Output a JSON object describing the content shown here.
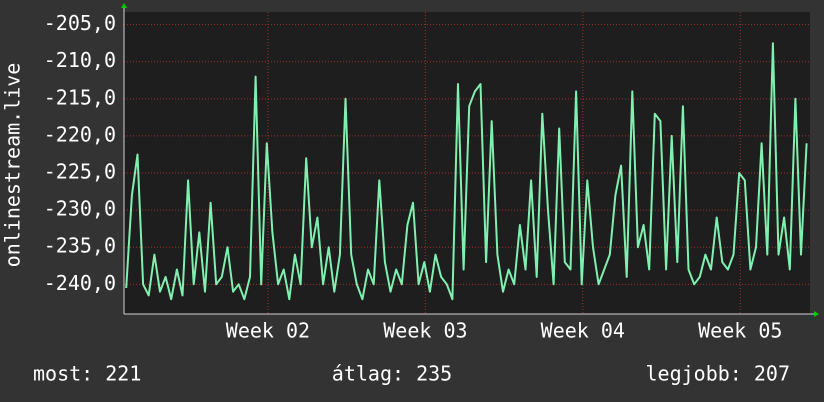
{
  "chart_data": {
    "type": "line",
    "ylabel": "onlinestream.live",
    "color": "#80f0b0",
    "grid": true,
    "ylim": [
      -244,
      -203.3
    ],
    "yticks": [
      {
        "value": -240,
        "label": "-240,0"
      },
      {
        "value": -235,
        "label": "-235,0"
      },
      {
        "value": -230,
        "label": "-230,0"
      },
      {
        "value": -225,
        "label": "-225,0"
      },
      {
        "value": -220,
        "label": "-220,0"
      },
      {
        "value": -215,
        "label": "-215,0"
      },
      {
        "value": -210,
        "label": "-210,0"
      },
      {
        "value": -205,
        "label": "-205,0"
      }
    ],
    "xlim": [
      0,
      30.5
    ],
    "xticks": [
      {
        "value": 6.4,
        "label": "Week 02"
      },
      {
        "value": 13.4,
        "label": "Week 03"
      },
      {
        "value": 20.4,
        "label": "Week 04"
      },
      {
        "value": 27.4,
        "label": "Week 05"
      }
    ],
    "x": [
      0.1,
      0.35,
      0.6,
      0.85,
      1.1,
      1.35,
      1.6,
      1.85,
      2.1,
      2.35,
      2.6,
      2.85,
      3.1,
      3.35,
      3.6,
      3.85,
      4.1,
      4.35,
      4.6,
      4.85,
      5.1,
      5.35,
      5.6,
      5.85,
      6.1,
      6.35,
      6.6,
      6.85,
      7.1,
      7.35,
      7.6,
      7.85,
      8.1,
      8.35,
      8.6,
      8.85,
      9.1,
      9.35,
      9.6,
      9.85,
      10.1,
      10.35,
      10.6,
      10.85,
      11.1,
      11.35,
      11.6,
      11.85,
      12.1,
      12.35,
      12.6,
      12.85,
      13.1,
      13.35,
      13.6,
      13.85,
      14.1,
      14.35,
      14.6,
      14.85,
      15.1,
      15.35,
      15.6,
      15.85,
      16.1,
      16.35,
      16.6,
      16.85,
      17.1,
      17.35,
      17.6,
      17.85,
      18.1,
      18.35,
      18.6,
      18.85,
      19.1,
      19.35,
      19.6,
      19.85,
      20.1,
      20.35,
      20.6,
      20.85,
      21.1,
      21.35,
      21.6,
      21.85,
      22.1,
      22.35,
      22.6,
      22.85,
      23.1,
      23.35,
      23.6,
      23.85,
      24.1,
      24.35,
      24.6,
      24.85,
      25.1,
      25.35,
      25.6,
      25.85,
      26.1,
      26.35,
      26.6,
      26.85,
      27.1,
      27.35,
      27.6,
      27.85,
      28.1,
      28.35,
      28.6,
      28.85,
      29.1,
      29.35,
      29.6,
      29.85,
      30.1,
      30.35
    ],
    "values": [
      -240.5,
      -228,
      -222.5,
      -240,
      -241.5,
      -236,
      -241,
      -239,
      -242,
      -238,
      -241.5,
      -226,
      -240,
      -233,
      -241,
      -229,
      -240,
      -239,
      -235,
      -241,
      -240,
      -242,
      -239,
      -212,
      -240,
      -221,
      -233,
      -240,
      -238,
      -242,
      -236,
      -240,
      -223,
      -235,
      -231,
      -240,
      -235,
      -241,
      -236,
      -215,
      -236,
      -240,
      -242,
      -238,
      -240,
      -226,
      -237,
      -241,
      -238,
      -240,
      -232,
      -229,
      -240,
      -237,
      -241,
      -236,
      -239,
      -240,
      -242,
      -213,
      -238,
      -216,
      -214,
      -213,
      -237,
      -218,
      -236,
      -241,
      -238,
      -240,
      -232,
      -238,
      -226,
      -239,
      -217,
      -230,
      -240,
      -219,
      -237,
      -238,
      -214,
      -240,
      -226,
      -235,
      -240,
      -238,
      -236,
      -228,
      -224,
      -239,
      -214,
      -235,
      -232,
      -238,
      -217,
      -218,
      -238,
      -220,
      -237,
      -216,
      -238,
      -240,
      -239,
      -236,
      -238,
      -231,
      -237,
      -238,
      -236,
      -225,
      -226,
      -238,
      -235,
      -221,
      -236,
      -207.5,
      -236,
      -231,
      -238,
      -215,
      -236,
      -221
    ],
    "annotations": [
      "most: 221",
      "átlag: 235",
      "legjobb: 207"
    ]
  }
}
